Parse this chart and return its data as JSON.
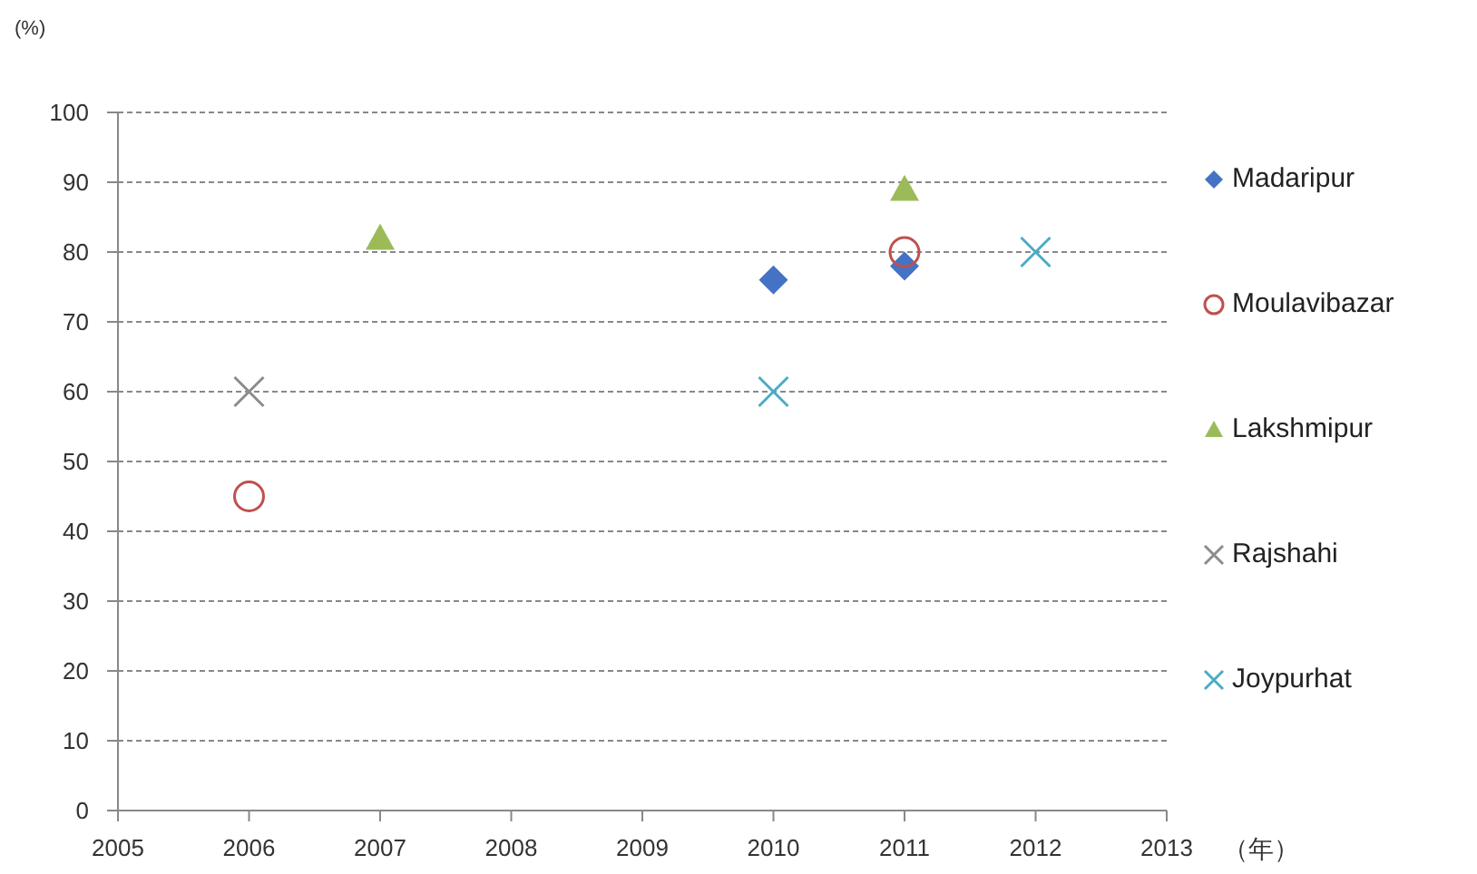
{
  "chart_data": {
    "type": "scatter",
    "xlabel": "（年）",
    "ylabel": "(%)",
    "xlim": [
      2005,
      2013
    ],
    "xticks": [
      2005,
      2006,
      2007,
      2008,
      2009,
      2010,
      2011,
      2012,
      2013
    ],
    "ylim": [
      0,
      100
    ],
    "yticks": [
      0,
      10,
      20,
      30,
      40,
      50,
      60,
      70,
      80,
      90,
      100
    ],
    "grid": "y",
    "legend": "right",
    "series": [
      {
        "name": "Madaripur",
        "color": "#4472c4",
        "marker": "diamond",
        "x": [
          2010,
          2011
        ],
        "values": [
          76,
          78
        ]
      },
      {
        "name": "Moulavibazar",
        "color": "#c0504d",
        "marker": "circle",
        "x": [
          2006,
          2011
        ],
        "values": [
          45,
          80
        ]
      },
      {
        "name": "Lakshmipur",
        "color": "#9bbb59",
        "marker": "triangle",
        "x": [
          2007,
          2011
        ],
        "values": [
          82,
          89
        ]
      },
      {
        "name": "Rajshahi",
        "color": "#8c8c8c",
        "marker": "cross",
        "x": [
          2006
        ],
        "values": [
          60
        ]
      },
      {
        "name": "Joypurhat",
        "color": "#4bacc6",
        "marker": "cross",
        "x": [
          2010,
          2012
        ],
        "values": [
          60,
          80
        ]
      }
    ]
  }
}
